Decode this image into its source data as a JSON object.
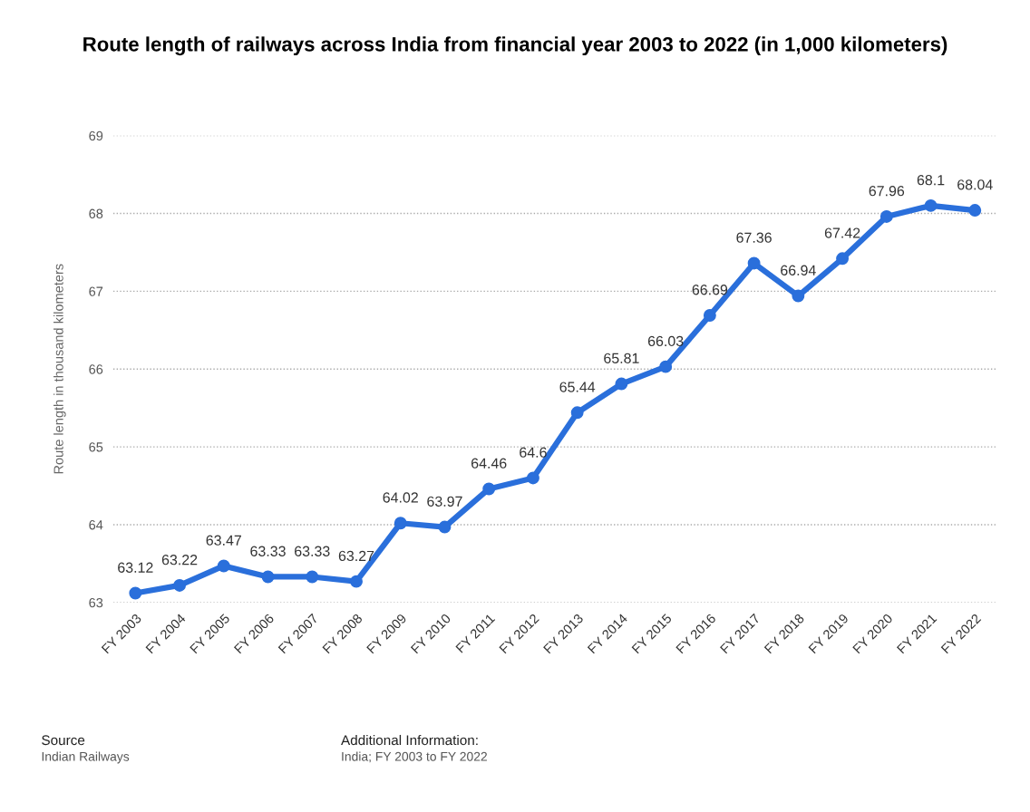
{
  "chart_data": {
    "type": "line",
    "title": "Route length of railways across India from financial year 2003 to 2022 (in 1,000 kilometers)",
    "ylabel": "Route length in thousand kilometers",
    "categories": [
      "FY 2003",
      "FY 2004",
      "FY 2005",
      "FY 2006",
      "FY 2007",
      "FY 2008",
      "FY 2009",
      "FY 2010",
      "FY 2011",
      "FY 2012",
      "FY 2013",
      "FY 2014",
      "FY 2015",
      "FY 2016",
      "FY 2017",
      "FY 2018",
      "FY 2019",
      "FY 2020",
      "FY 2021",
      "FY 2022"
    ],
    "series": [
      {
        "color": "#2a6fdb",
        "values": [
          63.12,
          63.22,
          63.47,
          63.33,
          63.33,
          63.27,
          64.02,
          63.97,
          64.46,
          64.6,
          65.44,
          65.81,
          66.03,
          66.69,
          67.36,
          66.94,
          67.42,
          67.96,
          68.1,
          68.04
        ]
      }
    ],
    "ylim": [
      63,
      69
    ],
    "yticks": [
      63,
      64,
      65,
      66,
      67,
      68,
      69
    ],
    "grid": "y",
    "marker": "circle",
    "line_style": "solid",
    "data_labels": true,
    "annotations": [
      "Source",
      "Indian Railways",
      "Additional Information:",
      "India; FY 2003 to FY 2022"
    ]
  }
}
